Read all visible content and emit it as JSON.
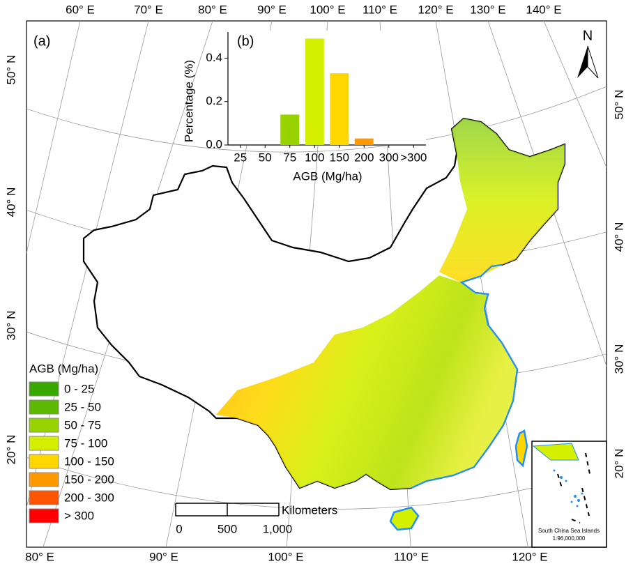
{
  "map": {
    "panel_label": "(a)",
    "north": "N",
    "lon_top": [
      "60° E",
      "70° E",
      "80° E",
      "90° E",
      "100° E",
      "110° E",
      "120° E",
      "130° E",
      "140° E"
    ],
    "lon_bottom": [
      "80° E",
      "90° E",
      "100° E",
      "110° E",
      "120° E"
    ],
    "lat_left": [
      "50° N",
      "40° N",
      "30° N",
      "20° N"
    ],
    "lat_right": [
      "50° N",
      "40° N",
      "30° N",
      "20° N"
    ],
    "legend": {
      "title": "AGB (Mg/ha)",
      "items": [
        {
          "label": "0 - 25",
          "color": "#38a800"
        },
        {
          "label": "25 - 50",
          "color": "#5cb800"
        },
        {
          "label": "50 - 75",
          "color": "#98d300"
        },
        {
          "label": "75 - 100",
          "color": "#d4ef00"
        },
        {
          "label": "100 - 150",
          "color": "#ffd700"
        },
        {
          "label": "150 - 200",
          "color": "#ff9900"
        },
        {
          "label": "200 - 300",
          "color": "#ff5500"
        },
        {
          "label": "> 300",
          "color": "#ff0000"
        }
      ]
    },
    "scale_bar": {
      "ticks": [
        "0",
        "500",
        "1,000"
      ],
      "unit": "Kilometers"
    },
    "inset": {
      "title": "South China Sea Islands",
      "scale": "1:96,000,000"
    }
  },
  "chart_data": {
    "type": "bar",
    "title": "(b)",
    "x_label": "AGB (Mg/ha)",
    "y_label": "Percentage (%)",
    "categories": [
      "25",
      "50",
      "75",
      "100",
      "150",
      "200",
      "300",
      ">300"
    ],
    "values": [
      0,
      0,
      0.14,
      0.49,
      0.33,
      0.03,
      0,
      0
    ],
    "colors": [
      "#38a800",
      "#5cb800",
      "#98d300",
      "#d4ef00",
      "#ffd700",
      "#ff9900",
      "#ff5500",
      "#ff0000"
    ],
    "ylim": [
      0,
      0.52
    ],
    "yticks": [
      {
        "value": 0,
        "label": "0.0"
      },
      {
        "value": 0.2,
        "label": "0.2"
      },
      {
        "value": 0.4,
        "label": "0.4"
      }
    ]
  }
}
